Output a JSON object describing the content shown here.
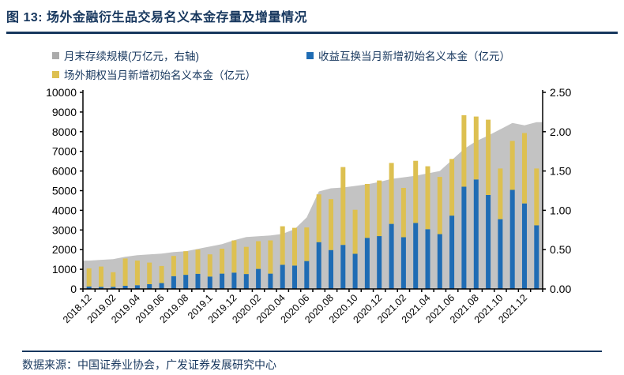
{
  "figure": {
    "title": "图 13: 场外金融衍生品交易名义本金存量及增量情况",
    "source": "数据来源：中国证券业协会，广发证券发展研究中心"
  },
  "colors": {
    "brand_navy": "#17375e",
    "swap_blue": "#1f6cb4",
    "option_yellow": "#ddc051",
    "area_gray": "#c3c3c3",
    "legend_gray": "#ababab",
    "axis_black": "#000000"
  },
  "legend": [
    {
      "label": "月末存续规模(万亿元，右轴)",
      "color": "#ababab"
    },
    {
      "label": "收益互换当月新增初始名义本金（亿元）",
      "color": "#1f6cb4"
    },
    {
      "label": "场外期权当月新增初始名义本金（亿元）",
      "color": "#ddc051"
    }
  ],
  "chart_data": {
    "type": "combo_stacked_bar_plus_area",
    "x": [
      "2018.12",
      "2019.01",
      "2019.02",
      "2019.03",
      "2019.04",
      "2019.05",
      "2019.06",
      "2019.07",
      "2019.08",
      "2019.09",
      "2019.10",
      "2019.11",
      "2019.12",
      "2020.01",
      "2020.02",
      "2020.03",
      "2020.04",
      "2020.05",
      "2020.06",
      "2020.07",
      "2020.08",
      "2020.09",
      "2020.10",
      "2020.11",
      "2020.12",
      "2021.01",
      "2021.02",
      "2021.03",
      "2021.04",
      "2021.05",
      "2021.06",
      "2021.07",
      "2021.08",
      "2021.09",
      "2021.10",
      "2021.11",
      "2021.12",
      "2022.01"
    ],
    "x_tick_labels": [
      "2018.12",
      "2019.02",
      "2019.04",
      "2019.06",
      "2019.08",
      "2019.1",
      "2019.12",
      "2020.02",
      "2020.04",
      "2020.06",
      "2020.08",
      "2020.10",
      "2020.12",
      "2021.02",
      "2021.04",
      "2021.06",
      "2021.08",
      "2021.10",
      "2021.12"
    ],
    "series": [
      {
        "name": "收益互换当月新增初始名义本金（亿元）",
        "type": "bar",
        "stack": 1,
        "axis": "left",
        "color": "#1f6cb4",
        "values": [
          130,
          110,
          110,
          160,
          190,
          240,
          300,
          650,
          720,
          770,
          630,
          780,
          830,
          760,
          1020,
          780,
          1230,
          1190,
          1420,
          2380,
          1980,
          2240,
          1790,
          2600,
          2690,
          3310,
          2630,
          3360,
          3040,
          2790,
          3730,
          5200,
          5570,
          4780,
          3550,
          5040,
          4350,
          3240
        ]
      },
      {
        "name": "场外期权当月新增初始名义本金（亿元）",
        "type": "bar",
        "stack": 1,
        "axis": "left",
        "color": "#ddc051",
        "values": [
          920,
          1030,
          740,
          1390,
          1250,
          1100,
          870,
          1030,
          1200,
          1230,
          1130,
          1270,
          1640,
          1380,
          1410,
          1690,
          1960,
          1920,
          1710,
          2430,
          2590,
          3960,
          2240,
          2740,
          2830,
          3100,
          2510,
          3160,
          3200,
          2910,
          2880,
          3640,
          3200,
          3830,
          2580,
          2490,
          3580,
          2890
        ]
      },
      {
        "name": "月末存续规模(万亿元，右轴)",
        "type": "area",
        "axis": "right",
        "color": "#c3c3c3",
        "values": [
          0.36,
          0.37,
          0.38,
          0.41,
          0.43,
          0.44,
          0.45,
          0.47,
          0.48,
          0.51,
          0.54,
          0.57,
          0.62,
          0.66,
          0.67,
          0.68,
          0.7,
          0.76,
          0.91,
          1.24,
          1.28,
          1.29,
          1.31,
          1.33,
          1.36,
          1.4,
          1.42,
          1.44,
          1.47,
          1.5,
          1.64,
          1.78,
          1.88,
          1.95,
          2.03,
          2.11,
          2.08,
          2.12
        ]
      }
    ],
    "left_axis": {
      "min": 0,
      "max": 10000,
      "step": 1000,
      "tick_labels": [
        "0",
        "1000",
        "2000",
        "3000",
        "4000",
        "5000",
        "6000",
        "7000",
        "8000",
        "9000",
        "10000"
      ]
    },
    "right_axis": {
      "min": 0,
      "max": 2.5,
      "step": 0.5,
      "tick_labels": [
        "0.00",
        "0.50",
        "1.00",
        "1.50",
        "2.00",
        "2.50"
      ]
    },
    "grid": false,
    "legend_position": "top"
  }
}
